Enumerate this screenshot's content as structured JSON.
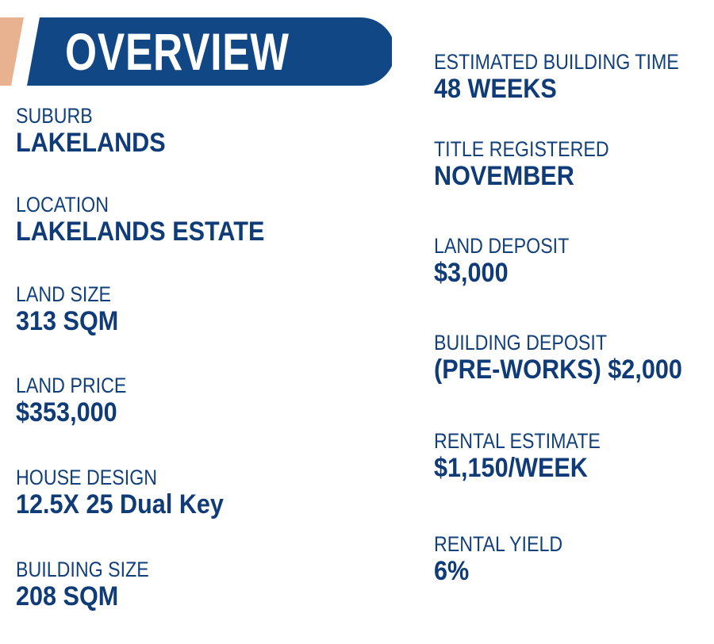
{
  "header": {
    "title": "OVERVIEW",
    "colors": {
      "banner": "#124785",
      "accent_stripe": "#e8b291",
      "text": "#12407a"
    }
  },
  "left_items": [
    {
      "label": "SUBURB",
      "value": "LAKELANDS"
    },
    {
      "label": "LOCATION",
      "value": "LAKELANDS ESTATE"
    },
    {
      "label": "LAND SIZE",
      "value": "313 SQM"
    },
    {
      "label": "LAND PRICE",
      "value": "$353,000"
    },
    {
      "label": "HOUSE DESIGN",
      "value": "12.5X 25 Dual Key"
    },
    {
      "label": "BUILDING SIZE",
      "value": "208 SQM"
    }
  ],
  "right_items": [
    {
      "label": "ESTIMATED BUILDING TIME",
      "value": "48 WEEKS"
    },
    {
      "label": "TITLE REGISTERED",
      "value": "NOVEMBER"
    },
    {
      "label": "LAND DEPOSIT",
      "value": "$3,000"
    },
    {
      "label": "BUILDING DEPOSIT",
      "value": "(PRE-WORKS) $2,000"
    },
    {
      "label": "RENTAL ESTIMATE",
      "value": "$1,150/WEEK"
    },
    {
      "label": "RENTAL YIELD",
      "value": "6%"
    }
  ]
}
